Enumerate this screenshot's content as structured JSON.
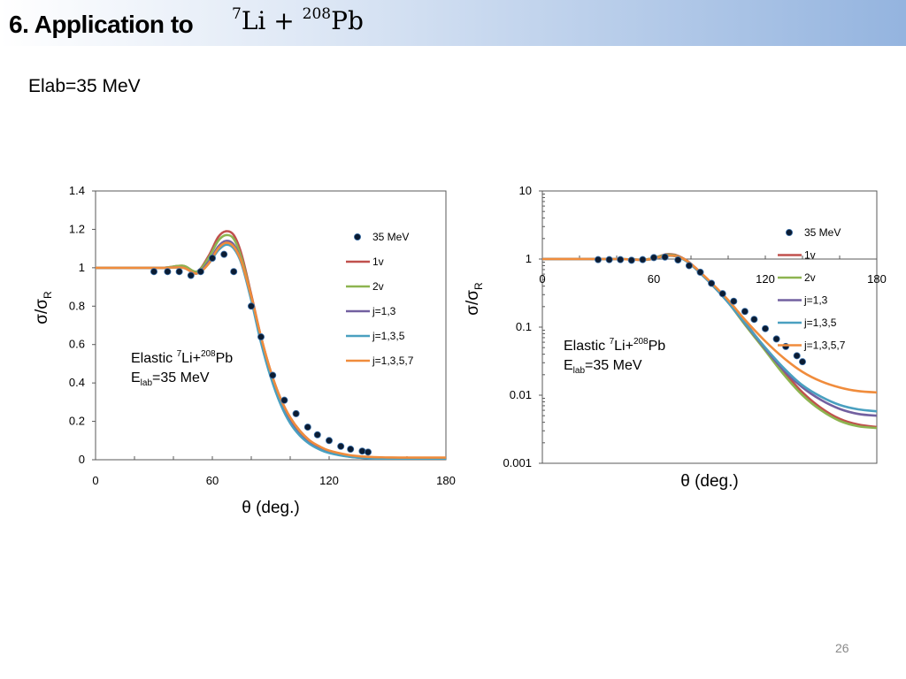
{
  "slide": {
    "title": "6. Application to",
    "title_formula": {
      "mass_a": "7",
      "element_a": "Li",
      "operator": "+",
      "mass_b": "208",
      "element_b": "Pb"
    },
    "subtitle": "Elab=35 MeV",
    "page_number": "26"
  },
  "chart_data": [
    {
      "type": "line",
      "scale": "linear",
      "xlabel": "θ (deg.)",
      "ylabel": {
        "main": "σ/σ",
        "sub": "R"
      },
      "xlim": [
        0,
        180
      ],
      "ylim": [
        0,
        1.4
      ],
      "x_ticks": [
        "0",
        "60",
        "120",
        "180"
      ],
      "y_ticks": [
        "0",
        "0.2",
        "0.4",
        "0.6",
        "0.8",
        "1",
        "1.2",
        "1.4"
      ],
      "annotation": {
        "line1_prefix": "Elastic ",
        "proj_mass": "7",
        "proj": "Li+",
        "targ_mass": "208",
        "targ": "Pb",
        "line2_main": "E",
        "line2_sub": "lab",
        "line2_rest": "=35 MeV"
      },
      "legend_position": "right",
      "data_series": {
        "name": "35 MeV",
        "color": "#0b1c33",
        "x": [
          30,
          37,
          43,
          49,
          54,
          60,
          66,
          71,
          80,
          85,
          91,
          97,
          103,
          109,
          114,
          120,
          126,
          131,
          137,
          140
        ],
        "y": [
          0.98,
          0.98,
          0.98,
          0.96,
          0.98,
          1.05,
          1.07,
          0.98,
          0.8,
          0.64,
          0.44,
          0.31,
          0.24,
          0.17,
          0.13,
          0.1,
          0.07,
          0.055,
          0.045,
          0.04
        ]
      },
      "x": [
        0,
        20,
        35,
        45,
        52,
        58,
        63,
        67,
        71,
        75,
        80,
        85,
        90,
        95,
        100,
        105,
        110,
        115,
        120,
        130,
        140,
        150,
        160,
        180
      ],
      "series": [
        {
          "name": "1v",
          "color": "#c0504d",
          "values": [
            1.0,
            1.0,
            1.0,
            1.01,
            0.98,
            1.06,
            1.16,
            1.19,
            1.17,
            1.07,
            0.86,
            0.64,
            0.46,
            0.32,
            0.22,
            0.15,
            0.1,
            0.065,
            0.043,
            0.02,
            0.01,
            0.006,
            0.004,
            0.003
          ]
        },
        {
          "name": "2v",
          "color": "#8db450",
          "values": [
            1.0,
            1.0,
            1.0,
            1.01,
            0.98,
            1.05,
            1.14,
            1.17,
            1.15,
            1.05,
            0.85,
            0.63,
            0.45,
            0.31,
            0.21,
            0.14,
            0.095,
            0.062,
            0.04,
            0.018,
            0.009,
            0.005,
            0.003,
            0.002
          ]
        },
        {
          "name": "j=1,3",
          "color": "#7260a0",
          "values": [
            1.0,
            1.0,
            1.0,
            1.0,
            0.97,
            1.03,
            1.11,
            1.14,
            1.12,
            1.03,
            0.84,
            0.62,
            0.44,
            0.3,
            0.2,
            0.13,
            0.088,
            0.058,
            0.038,
            0.017,
            0.008,
            0.005,
            0.003,
            0.002
          ]
        },
        {
          "name": "j=1,3,5",
          "color": "#4aa0c0",
          "values": [
            1.0,
            1.0,
            1.0,
            1.0,
            0.97,
            1.02,
            1.09,
            1.12,
            1.1,
            1.02,
            0.83,
            0.61,
            0.43,
            0.29,
            0.19,
            0.125,
            0.082,
            0.054,
            0.035,
            0.016,
            0.008,
            0.005,
            0.003,
            0.002
          ]
        },
        {
          "name": "j=1,3,5,7",
          "color": "#f08c3c",
          "values": [
            1.0,
            1.0,
            1.0,
            1.0,
            0.97,
            1.02,
            1.1,
            1.13,
            1.11,
            1.03,
            0.85,
            0.64,
            0.46,
            0.32,
            0.22,
            0.15,
            0.1,
            0.07,
            0.048,
            0.025,
            0.015,
            0.012,
            0.011,
            0.011
          ]
        }
      ]
    },
    {
      "type": "line",
      "scale": "log",
      "xlabel": "θ (deg.)",
      "ylabel": {
        "main": "σ/σ",
        "sub": "R"
      },
      "xlim": [
        0,
        180
      ],
      "ylim": [
        0.001,
        10
      ],
      "x_ticks": [
        "0",
        "60",
        "120",
        "180"
      ],
      "y_ticks": [
        "0.001",
        "0.01",
        "0.1",
        "1",
        "10"
      ],
      "annotation": {
        "line1_prefix": "Elastic ",
        "proj_mass": "7",
        "proj": "Li+",
        "targ_mass": "208",
        "targ": "Pb",
        "line2_main": "E",
        "line2_sub": "lab",
        "line2_rest": "=35 MeV"
      },
      "legend_position": "right",
      "data_series": {
        "name": "35 MeV",
        "color": "#0b1c33",
        "x": [
          30,
          36,
          42,
          48,
          54,
          60,
          66,
          73,
          79,
          85,
          91,
          97,
          103,
          109,
          114,
          120,
          126,
          131,
          137,
          140
        ],
        "y": [
          0.98,
          0.98,
          0.98,
          0.96,
          0.98,
          1.05,
          1.07,
          0.97,
          0.8,
          0.64,
          0.44,
          0.31,
          0.24,
          0.17,
          0.13,
          0.095,
          0.067,
          0.052,
          0.038,
          0.031
        ]
      },
      "x": [
        0,
        40,
        55,
        62,
        67,
        72,
        78,
        85,
        92,
        100,
        110,
        120,
        130,
        140,
        150,
        160,
        170,
        180
      ],
      "series": [
        {
          "name": "1v",
          "color": "#c0504d",
          "values": [
            1.0,
            1.0,
            0.98,
            1.08,
            1.18,
            1.14,
            0.94,
            0.64,
            0.41,
            0.24,
            0.11,
            0.048,
            0.022,
            0.011,
            0.0065,
            0.0045,
            0.0037,
            0.0034
          ]
        },
        {
          "name": "2v",
          "color": "#8db450",
          "values": [
            1.0,
            1.0,
            0.98,
            1.07,
            1.16,
            1.12,
            0.93,
            0.63,
            0.4,
            0.23,
            0.1,
            0.045,
            0.02,
            0.01,
            0.006,
            0.0042,
            0.0035,
            0.0033
          ]
        },
        {
          "name": "j=1,3",
          "color": "#7260a0",
          "values": [
            1.0,
            1.0,
            0.97,
            1.05,
            1.13,
            1.1,
            0.92,
            0.62,
            0.4,
            0.23,
            0.105,
            0.048,
            0.023,
            0.013,
            0.0085,
            0.0063,
            0.0053,
            0.005
          ]
        },
        {
          "name": "j=1,3,5",
          "color": "#4aa0c0",
          "values": [
            1.0,
            1.0,
            0.97,
            1.04,
            1.11,
            1.09,
            0.91,
            0.62,
            0.4,
            0.23,
            0.107,
            0.05,
            0.025,
            0.014,
            0.0095,
            0.0072,
            0.0062,
            0.0058
          ]
        },
        {
          "name": "j=1,3,5,7",
          "color": "#f08c3c",
          "values": [
            1.0,
            1.0,
            0.97,
            1.05,
            1.12,
            1.1,
            0.93,
            0.64,
            0.42,
            0.25,
            0.12,
            0.062,
            0.035,
            0.022,
            0.016,
            0.013,
            0.0115,
            0.011
          ]
        }
      ]
    }
  ]
}
